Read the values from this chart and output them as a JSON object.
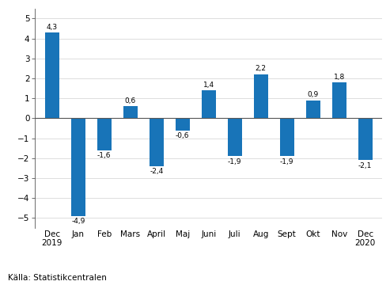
{
  "categories": [
    "Dec\n2019",
    "Jan",
    "Feb",
    "Mars",
    "April",
    "Maj",
    "Juni",
    "Juli",
    "Aug",
    "Sept",
    "Okt",
    "Nov",
    "Dec\n2020"
  ],
  "values": [
    4.3,
    -4.9,
    -1.6,
    0.6,
    -2.4,
    -0.6,
    1.4,
    -1.9,
    2.2,
    -1.9,
    0.9,
    1.8,
    -2.1
  ],
  "bar_color": "#1874b8",
  "ylim": [
    -5.5,
    5.5
  ],
  "yticks": [
    -5,
    -4,
    -3,
    -2,
    -1,
    0,
    1,
    2,
    3,
    4,
    5
  ],
  "source_text": "Källa: Statistikcentralen",
  "label_fontsize": 6.5,
  "tick_fontsize": 7.5,
  "source_fontsize": 7.5,
  "bar_width": 0.55
}
